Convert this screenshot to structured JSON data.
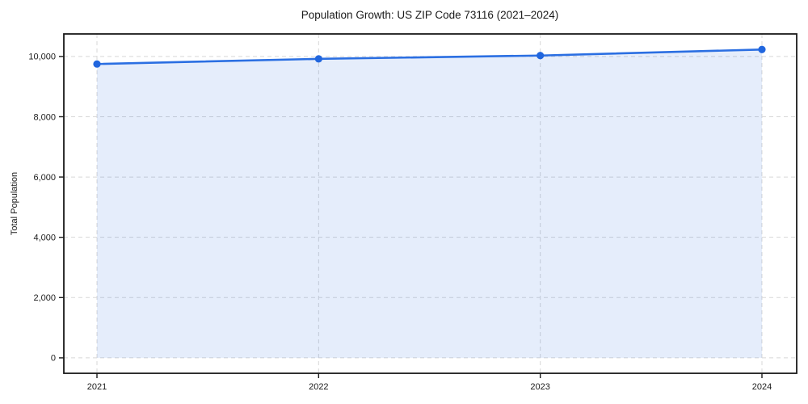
{
  "chart_data": {
    "type": "line",
    "title": "Population Growth: US ZIP Code 73116 (2021–2024)",
    "xlabel": "",
    "ylabel": "Total Population",
    "x": [
      2021,
      2022,
      2023,
      2024
    ],
    "xtick_labels": [
      "2021",
      "2022",
      "2023",
      "2024"
    ],
    "series": [
      {
        "name": "Total Population",
        "values": [
          9750,
          9920,
          10030,
          10230
        ]
      }
    ],
    "area_fill": true,
    "markers": true,
    "grid": "dashed, horizontal and vertical",
    "legend": "none",
    "ylim": [
      -512,
      10747
    ],
    "yticks": [
      0,
      2000,
      4000,
      6000,
      8000,
      10000
    ],
    "ytick_labels": [
      "0",
      "2,000",
      "4,000",
      "6,000",
      "8,000",
      "10,000"
    ],
    "fill_baseline": 0,
    "colors": {
      "line": "#2b6fe2",
      "marker": "#2166de",
      "fill": "rgba(43,111,226,0.12)",
      "grid": "#d7d7d7",
      "axis": "#1a1a1a",
      "text": "#1a1a1a",
      "background": "#ffffff"
    }
  }
}
